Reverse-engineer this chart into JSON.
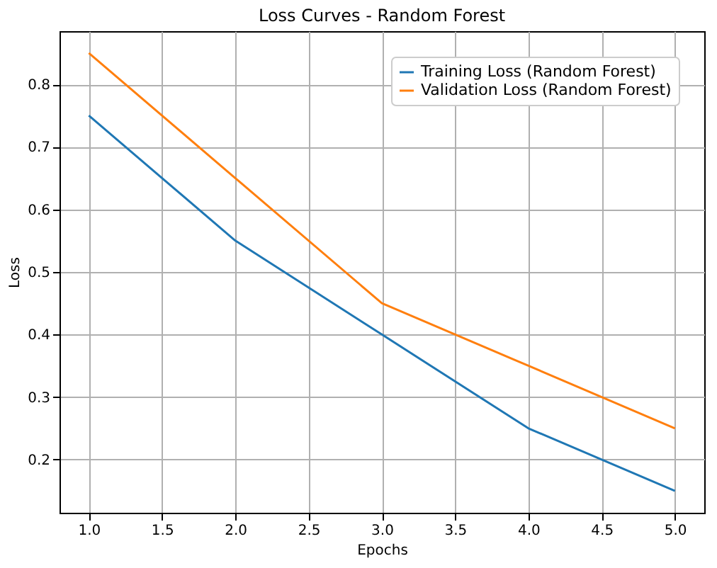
{
  "chart_data": {
    "type": "line",
    "title": "Loss Curves - Random Forest",
    "xlabel": "Epochs",
    "ylabel": "Loss",
    "x": [
      1,
      2,
      3,
      4,
      5
    ],
    "series": [
      {
        "name": "Training Loss (Random Forest)",
        "color": "#1f77b4",
        "values": [
          0.75,
          0.55,
          0.4,
          0.25,
          0.15
        ]
      },
      {
        "name": "Validation Loss (Random Forest)",
        "color": "#ff7f0e",
        "values": [
          0.85,
          0.65,
          0.45,
          0.35,
          0.25
        ]
      }
    ],
    "xlim": [
      0.8,
      5.2
    ],
    "xticks": [
      {
        "value": 1,
        "label": "1.0"
      },
      {
        "value": 1.5,
        "label": "1.5"
      },
      {
        "value": 2,
        "label": "2.0"
      },
      {
        "value": 2.5,
        "label": "2.5"
      },
      {
        "value": 3,
        "label": "3.0"
      },
      {
        "value": 3.5,
        "label": "3.5"
      },
      {
        "value": 4,
        "label": "4.0"
      },
      {
        "value": 4.5,
        "label": "4.5"
      },
      {
        "value": 5,
        "label": "5.0"
      }
    ],
    "ylim": [
      0.115,
      0.885
    ],
    "yticks": [
      0.2,
      0.3,
      0.4,
      0.5,
      0.6,
      0.7,
      0.8
    ],
    "grid": true,
    "legend": "top right",
    "marker": "none",
    "line_style": "solid"
  }
}
